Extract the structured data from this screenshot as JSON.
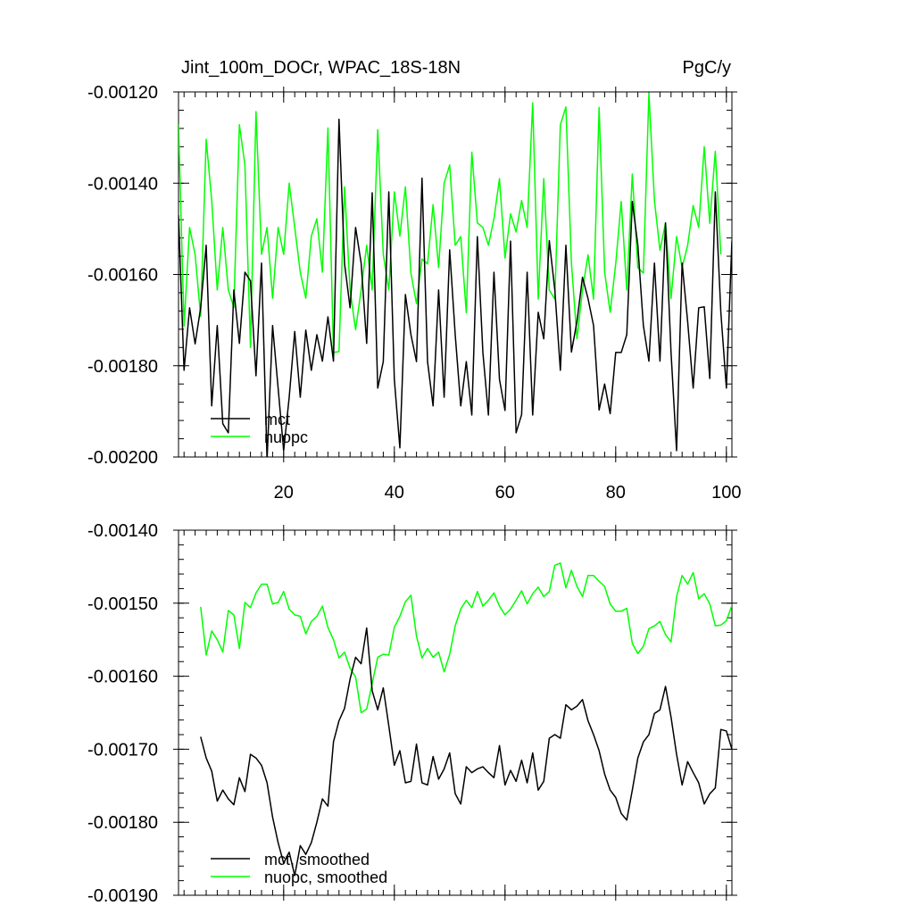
{
  "chart_data": [
    {
      "type": "line",
      "title_left": "Jint_100m_DOCr, WPAC_18S-18N",
      "title_right": "PgC/y",
      "xlim": [
        1,
        101
      ],
      "ylim": [
        -0.002,
        -0.0012
      ],
      "xticks": [
        20,
        40,
        60,
        80,
        100
      ],
      "xtick_labels": [
        "20",
        "40",
        "60",
        "80",
        "100"
      ],
      "yticks": [
        -0.0012,
        -0.0014,
        -0.0016,
        -0.0018,
        -0.002
      ],
      "ytick_labels": [
        "-0.00120",
        "-0.00140",
        "-0.00160",
        "-0.00180",
        "-0.00200"
      ],
      "legend_position": "bottom-left",
      "series": [
        {
          "name": "mct",
          "color": "#000000",
          "x_start": 1,
          "values": [
            -0.00147,
            -0.00181,
            -0.001673,
            -0.001752,
            -0.001673,
            -0.001536,
            -0.001888,
            -0.001712,
            -0.001927,
            -0.001947,
            -0.001634,
            -0.001751,
            -0.001595,
            -0.001614,
            -0.001822,
            -0.001575,
            -0.002006,
            -0.001712,
            -0.001849,
            -0.001986,
            -0.001869,
            -0.001725,
            -0.001869,
            -0.001722,
            -0.00181,
            -0.001732,
            -0.00179,
            -0.001693,
            -0.00179,
            -0.00126,
            -0.001576,
            -0.001673,
            -0.001497,
            -0.001575,
            -0.001751,
            -0.001421,
            -0.001849,
            -0.001791,
            -0.001419,
            -0.00183,
            -0.00198,
            -0.001644,
            -0.001732,
            -0.001791,
            -0.001389,
            -0.001791,
            -0.001888,
            -0.001634,
            -0.001869,
            -0.001546,
            -0.001732,
            -0.001888,
            -0.001791,
            -0.001908,
            -0.001517,
            -0.001771,
            -0.001908,
            -0.001595,
            -0.00183,
            -0.001898,
            -0.001527,
            -0.001947,
            -0.001907,
            -0.001595,
            -0.001908,
            -0.001683,
            -0.001741,
            -0.001526,
            -0.001634,
            -0.00181,
            -0.001536,
            -0.00177,
            -0.001703,
            -0.001606,
            -0.001653,
            -0.001712,
            -0.001897,
            -0.00184,
            -0.001905,
            -0.001771,
            -0.001771,
            -0.001732,
            -0.00144,
            -0.001536,
            -0.001712,
            -0.00179,
            -0.001575,
            -0.00179,
            -0.001487,
            -0.001771,
            -0.001986,
            -0.001575,
            -0.001703,
            -0.001849,
            -0.001673,
            -0.001671,
            -0.001828,
            -0.001419,
            -0.001683,
            -0.001849,
            -0.001526
          ]
        },
        {
          "name": "nuopc",
          "color": "#00ff00",
          "x_start": 1,
          "values": [
            -0.00127,
            -0.001713,
            -0.001497,
            -0.001556,
            -0.001692,
            -0.001304,
            -0.001438,
            -0.001634,
            -0.001497,
            -0.001634,
            -0.001672,
            -0.001272,
            -0.00136,
            -0.00176,
            -0.001243,
            -0.001556,
            -0.001497,
            -0.001652,
            -0.001497,
            -0.001556,
            -0.0014,
            -0.001497,
            -0.001595,
            -0.001652,
            -0.001516,
            -0.001478,
            -0.001595,
            -0.001279,
            -0.001771,
            -0.001769,
            -0.001408,
            -0.001634,
            -0.001721,
            -0.001634,
            -0.001536,
            -0.001634,
            -0.001283,
            -0.001556,
            -0.001634,
            -0.001419,
            -0.001516,
            -0.001408,
            -0.001597,
            -0.001664,
            -0.001566,
            -0.001577,
            -0.001447,
            -0.001585,
            -0.0014,
            -0.00136,
            -0.001536,
            -0.001517,
            -0.001684,
            -0.001332,
            -0.001487,
            -0.001497,
            -0.001536,
            -0.001478,
            -0.00139,
            -0.001564,
            -0.001467,
            -0.001507,
            -0.001438,
            -0.001497,
            -0.001224,
            -0.001654,
            -0.00139,
            -0.001634,
            -0.001654,
            -0.001272,
            -0.001233,
            -0.001575,
            -0.001741,
            -0.001634,
            -0.001557,
            -0.001654,
            -0.001234,
            -0.001595,
            -0.001683,
            -0.001577,
            -0.00144,
            -0.001634,
            -0.00138,
            -0.001585,
            -0.001597,
            -0.001203,
            -0.001438,
            -0.001547,
            -0.001487,
            -0.001653,
            -0.001517,
            -0.001585,
            -0.001536,
            -0.001449,
            -0.001497,
            -0.00132,
            -0.001488,
            -0.00133,
            -0.001556
          ]
        }
      ]
    },
    {
      "type": "line",
      "xlim": [
        1,
        101
      ],
      "ylim": [
        -0.0019,
        -0.0014
      ],
      "xticks": [
        20,
        40,
        60,
        80,
        100
      ],
      "yticks": [
        -0.0014,
        -0.0015,
        -0.0016,
        -0.0017,
        -0.0018,
        -0.0019
      ],
      "ytick_labels": [
        "-0.00140",
        "-0.00150",
        "-0.00160",
        "-0.00170",
        "-0.00180",
        "-0.00190"
      ],
      "legend_position": "bottom-left",
      "series": [
        {
          "name": "mct, smoothed",
          "color": "#000000",
          "x_start": 5,
          "values": [
            -0.001683,
            -0.001712,
            -0.00173,
            -0.001771,
            -0.001756,
            -0.001768,
            -0.001776,
            -0.001739,
            -0.001758,
            -0.001707,
            -0.001712,
            -0.001722,
            -0.001746,
            -0.001793,
            -0.001828,
            -0.001856,
            -0.001841,
            -0.001873,
            -0.001832,
            -0.001844,
            -0.001828,
            -0.0018,
            -0.001768,
            -0.001778,
            -0.00169,
            -0.001661,
            -0.001644,
            -0.001604,
            -0.001574,
            -0.001583,
            -0.001534,
            -0.00162,
            -0.001646,
            -0.001616,
            -0.001668,
            -0.001722,
            -0.001702,
            -0.001746,
            -0.001744,
            -0.001693,
            -0.001746,
            -0.001749,
            -0.00171,
            -0.001741,
            -0.001727,
            -0.001705,
            -0.001761,
            -0.001775,
            -0.001724,
            -0.001732,
            -0.001727,
            -0.001724,
            -0.001732,
            -0.001739,
            -0.001695,
            -0.001749,
            -0.001729,
            -0.001744,
            -0.001715,
            -0.001746,
            -0.001705,
            -0.001756,
            -0.001744,
            -0.001685,
            -0.00168,
            -0.001685,
            -0.001639,
            -0.001646,
            -0.001641,
            -0.001632,
            -0.001661,
            -0.00168,
            -0.001702,
            -0.001734,
            -0.001756,
            -0.001766,
            -0.001788,
            -0.001797,
            -0.001756,
            -0.001712,
            -0.00169,
            -0.00168,
            -0.001651,
            -0.001646,
            -0.001614,
            -0.001656,
            -0.001707,
            -0.001749,
            -0.001717,
            -0.001732,
            -0.001746,
            -0.001775,
            -0.001761,
            -0.001753,
            -0.001673,
            -0.001675,
            -0.0017,
            -0.001653
          ]
        },
        {
          "name": "nuopc, smoothed",
          "color": "#00ff00",
          "x_start": 5,
          "values": [
            -0.001505,
            -0.001571,
            -0.001538,
            -0.00155,
            -0.001567,
            -0.00151,
            -0.001516,
            -0.001562,
            -0.001499,
            -0.001506,
            -0.001486,
            -0.001474,
            -0.001474,
            -0.001501,
            -0.001499,
            -0.001484,
            -0.001508,
            -0.001516,
            -0.001518,
            -0.001542,
            -0.001525,
            -0.001518,
            -0.001504,
            -0.001533,
            -0.00155,
            -0.001575,
            -0.001567,
            -0.001589,
            -0.001601,
            -0.00165,
            -0.001645,
            -0.00161,
            -0.001574,
            -0.00157,
            -0.001571,
            -0.001533,
            -0.001518,
            -0.001498,
            -0.001489,
            -0.001545,
            -0.001575,
            -0.001562,
            -0.001574,
            -0.001567,
            -0.001594,
            -0.00157,
            -0.001531,
            -0.001508,
            -0.001496,
            -0.001506,
            -0.001484,
            -0.001504,
            -0.001496,
            -0.001486,
            -0.001504,
            -0.001516,
            -0.001508,
            -0.001496,
            -0.001483,
            -0.001501,
            -0.001487,
            -0.001478,
            -0.001491,
            -0.001484,
            -0.001448,
            -0.001445,
            -0.001479,
            -0.001455,
            -0.001477,
            -0.001491,
            -0.001462,
            -0.001462,
            -0.00147,
            -0.001477,
            -0.001501,
            -0.001511,
            -0.001511,
            -0.001507,
            -0.001555,
            -0.001569,
            -0.001559,
            -0.001535,
            -0.001531,
            -0.001525,
            -0.001543,
            -0.001553,
            -0.001491,
            -0.001462,
            -0.001474,
            -0.001458,
            -0.001494,
            -0.001487,
            -0.001501,
            -0.001531,
            -0.00153,
            -0.001524,
            -0.001503,
            -0.001486,
            -0.001458,
            -0.001455
          ]
        }
      ]
    }
  ]
}
